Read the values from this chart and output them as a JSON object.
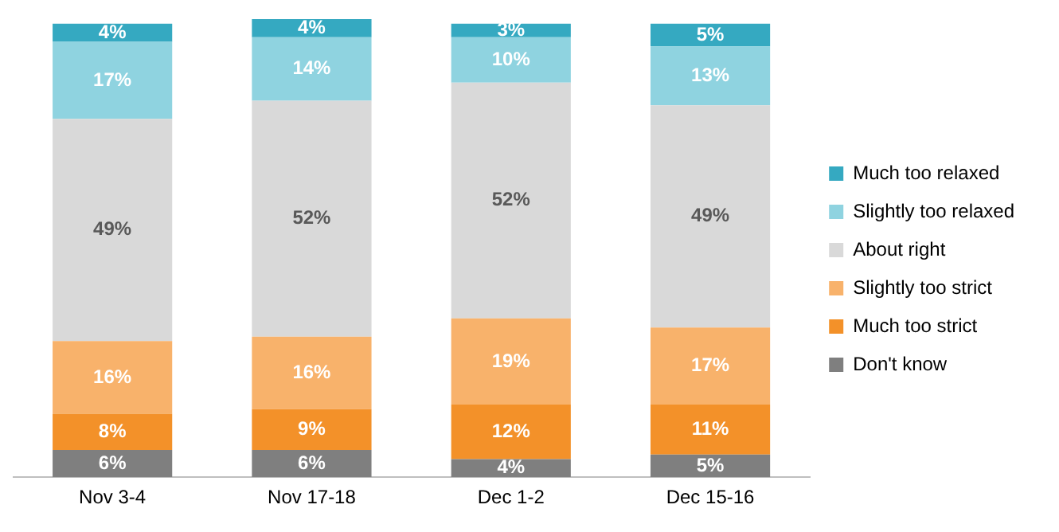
{
  "chart_data": {
    "type": "bar",
    "stacked": true,
    "legend": "right",
    "grid": false,
    "categories": [
      "Nov 3-4",
      "Nov 17-18",
      "Dec 1-2",
      "Dec 15-16"
    ],
    "series": [
      {
        "name": "Don't know",
        "color": "#7f7f7f",
        "values": [
          6,
          6,
          4,
          5
        ],
        "value_labels": [
          "6%",
          "6%",
          "4%",
          "5%"
        ]
      },
      {
        "name": "Much too strict",
        "color": "#f39129",
        "values": [
          8,
          9,
          12,
          11
        ],
        "value_labels": [
          "8%",
          "9%",
          "12%",
          "11%"
        ]
      },
      {
        "name": "Slightly too strict",
        "color": "#f8b26b",
        "values": [
          16,
          16,
          19,
          17
        ],
        "value_labels": [
          "16%",
          "16%",
          "19%",
          "17%"
        ]
      },
      {
        "name": "About right",
        "color": "#d9d9d9",
        "values": [
          49,
          52,
          52,
          49
        ],
        "value_labels": [
          "49%",
          "52%",
          "52%",
          "49%"
        ]
      },
      {
        "name": "Slightly too relaxed",
        "color": "#8fd3e0",
        "values": [
          17,
          14,
          10,
          13
        ],
        "value_labels": [
          "17%",
          "14%",
          "10%",
          "13%"
        ]
      },
      {
        "name": "Much too relaxed",
        "color": "#35a9c1",
        "values": [
          4,
          4,
          3,
          5
        ],
        "value_labels": [
          "4%",
          "4%",
          "3%",
          "5%"
        ]
      }
    ]
  }
}
